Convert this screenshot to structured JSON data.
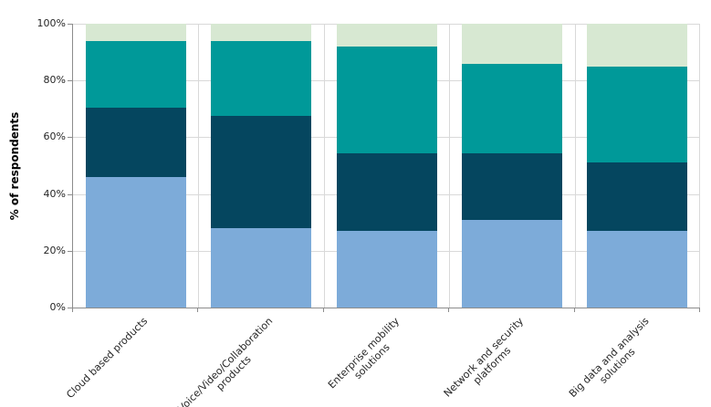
{
  "chart_data": {
    "type": "bar",
    "stacked": true,
    "title": "",
    "ylabel": "% of respondents",
    "xlabel": "",
    "ylim": [
      0,
      100
    ],
    "yticks": [
      "0%",
      "20%",
      "40%",
      "60%",
      "80%",
      "100%"
    ],
    "grid": true,
    "legend": "none",
    "x_tick_angle": -45,
    "categories": [
      "Cloud based products",
      "Voice/Video/Collaboration\nproducts",
      "Enterprise mobility\nsolutions",
      "Network and security\nplatforms",
      "Big data and analysis\nsolutions"
    ],
    "series": [
      {
        "name": "segment-light-blue",
        "color": "#7DABD9",
        "values": [
          46,
          28,
          27,
          31,
          27
        ]
      },
      {
        "name": "segment-dark-navy",
        "color": "#05465F",
        "values": [
          24.5,
          39.5,
          27.5,
          23.5,
          24
        ]
      },
      {
        "name": "segment-teal",
        "color": "#009999",
        "values": [
          23.5,
          26.5,
          37.5,
          31.5,
          34
        ]
      },
      {
        "name": "segment-pale-green",
        "color": "#D7E8D2",
        "values": [
          6,
          6,
          8,
          14,
          15
        ]
      }
    ],
    "cumulative_tops": {
      "Cloud based products": [
        46,
        70.5,
        94,
        100
      ],
      "Voice/Video/Collaboration products": [
        28,
        67.5,
        94,
        100
      ],
      "Enterprise mobility solutions": [
        27,
        54.5,
        92,
        100
      ],
      "Network and security platforms": [
        31,
        54.5,
        86,
        100
      ],
      "Big data and analysis solutions": [
        27,
        51,
        85,
        100
      ]
    }
  },
  "style": {
    "background": "#FFFFFF",
    "gridline_color": "#D9D9D9",
    "axis_color": "#8C8C8C",
    "tick_text_color": "#262626"
  }
}
